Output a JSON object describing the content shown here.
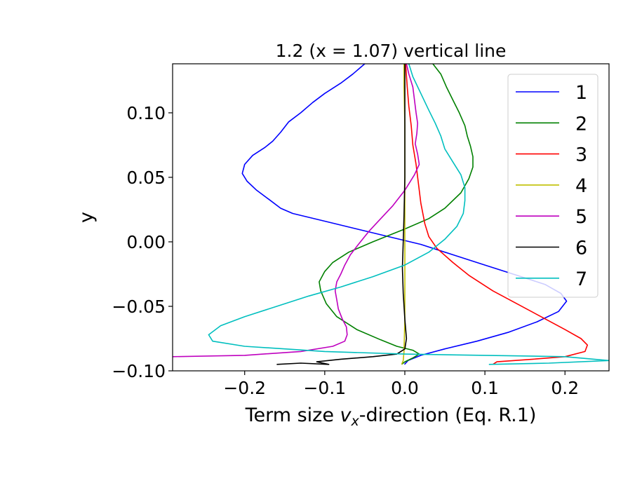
{
  "chart_data": {
    "type": "line",
    "title": "1.2 (x = 1.07) vertical line",
    "xlabel_prefix": "Term size ",
    "xlabel_var": "v",
    "xlabel_sub": "x",
    "xlabel_suffix": "-direction (Eq. R.1)",
    "ylabel": "y",
    "xlim": [
      -0.29,
      0.255
    ],
    "ylim": [
      -0.1,
      0.138
    ],
    "xticks": [
      -0.2,
      -0.1,
      0.0,
      0.1,
      0.2
    ],
    "xtick_labels": [
      "−0.2",
      "−0.1",
      "0.0",
      "0.1",
      "0.2"
    ],
    "yticks": [
      -0.1,
      -0.05,
      0.0,
      0.05,
      0.1
    ],
    "ytick_labels": [
      "−0.10",
      "−0.05",
      "0.00",
      "0.05",
      "0.10"
    ],
    "legend_position": "upper-right",
    "grid": false,
    "series": [
      {
        "name": "1",
        "color": "#0000ff",
        "points": [
          [
            -0.0004,
            -0.095
          ],
          [
            0.004,
            -0.092
          ],
          [
            0.02,
            -0.088
          ],
          [
            0.05,
            -0.083
          ],
          [
            0.09,
            -0.077
          ],
          [
            0.13,
            -0.07
          ],
          [
            0.165,
            -0.062
          ],
          [
            0.192,
            -0.054
          ],
          [
            0.202,
            -0.046
          ],
          [
            0.195,
            -0.04
          ],
          [
            0.175,
            -0.033
          ],
          [
            0.14,
            -0.026
          ],
          [
            0.1,
            -0.018
          ],
          [
            0.06,
            -0.01
          ],
          [
            0.02,
            -0.002
          ],
          [
            -0.02,
            0.004
          ],
          [
            -0.06,
            0.01
          ],
          [
            -0.1,
            0.016
          ],
          [
            -0.14,
            0.022
          ],
          [
            -0.155,
            0.026
          ],
          [
            -0.17,
            0.033
          ],
          [
            -0.185,
            0.04
          ],
          [
            -0.197,
            0.047
          ],
          [
            -0.203,
            0.053
          ],
          [
            -0.2,
            0.06
          ],
          [
            -0.19,
            0.067
          ],
          [
            -0.175,
            0.073
          ],
          [
            -0.165,
            0.078
          ],
          [
            -0.155,
            0.085
          ],
          [
            -0.145,
            0.093
          ],
          [
            -0.13,
            0.1
          ],
          [
            -0.115,
            0.108
          ],
          [
            -0.1,
            0.115
          ],
          [
            -0.08,
            0.123
          ],
          [
            -0.065,
            0.13
          ],
          [
            -0.05,
            0.138
          ]
        ]
      },
      {
        "name": "2",
        "color": "#008000",
        "points": [
          [
            -0.004,
            -0.095
          ],
          [
            0.0,
            -0.093
          ],
          [
            0.01,
            -0.09
          ],
          [
            0.018,
            -0.087
          ],
          [
            0.01,
            -0.084
          ],
          [
            -0.01,
            -0.081
          ],
          [
            -0.03,
            -0.076
          ],
          [
            -0.06,
            -0.068
          ],
          [
            -0.085,
            -0.058
          ],
          [
            -0.098,
            -0.048
          ],
          [
            -0.105,
            -0.038
          ],
          [
            -0.107,
            -0.031
          ],
          [
            -0.1,
            -0.023
          ],
          [
            -0.09,
            -0.016
          ],
          [
            -0.07,
            -0.008
          ],
          [
            -0.04,
            0.0
          ],
          [
            0.0,
            0.01
          ],
          [
            0.03,
            0.018
          ],
          [
            0.05,
            0.026
          ],
          [
            0.07,
            0.038
          ],
          [
            0.08,
            0.049
          ],
          [
            0.085,
            0.058
          ],
          [
            0.085,
            0.066
          ],
          [
            0.082,
            0.074
          ],
          [
            0.078,
            0.082
          ],
          [
            0.075,
            0.09
          ],
          [
            0.068,
            0.1
          ],
          [
            0.06,
            0.11
          ],
          [
            0.052,
            0.12
          ],
          [
            0.045,
            0.13
          ],
          [
            0.035,
            0.138
          ]
        ]
      },
      {
        "name": "3",
        "color": "#ff0000",
        "points": [
          [
            0.11,
            -0.095
          ],
          [
            0.115,
            -0.093
          ],
          [
            0.16,
            -0.091
          ],
          [
            0.2,
            -0.089
          ],
          [
            0.225,
            -0.085
          ],
          [
            0.228,
            -0.08
          ],
          [
            0.22,
            -0.075
          ],
          [
            0.2,
            -0.068
          ],
          [
            0.17,
            -0.058
          ],
          [
            0.14,
            -0.048
          ],
          [
            0.11,
            -0.038
          ],
          [
            0.08,
            -0.026
          ],
          [
            0.06,
            -0.016
          ],
          [
            0.04,
            -0.005
          ],
          [
            0.03,
            0.004
          ],
          [
            0.025,
            0.014
          ],
          [
            0.02,
            0.03
          ],
          [
            0.017,
            0.045
          ],
          [
            0.014,
            0.06
          ],
          [
            0.01,
            0.075
          ],
          [
            0.008,
            0.09
          ],
          [
            0.005,
            0.105
          ],
          [
            0.003,
            0.12
          ],
          [
            0.001,
            0.138
          ]
        ]
      },
      {
        "name": "4",
        "color": "#bfbf00",
        "points": [
          [
            -0.004,
            -0.095
          ],
          [
            -0.002,
            -0.092
          ],
          [
            -0.001,
            -0.085
          ],
          [
            0.0,
            -0.06
          ],
          [
            0.0,
            -0.03
          ],
          [
            0.0,
            0.0
          ],
          [
            0.0,
            0.03
          ],
          [
            0.0,
            0.06
          ],
          [
            0.0,
            0.09
          ],
          [
            -0.001,
            0.12
          ],
          [
            -0.001,
            0.138
          ]
        ]
      },
      {
        "name": "5",
        "color": "#bf00bf",
        "points": [
          [
            -0.29,
            -0.089
          ],
          [
            -0.2,
            -0.088
          ],
          [
            -0.13,
            -0.085
          ],
          [
            -0.09,
            -0.081
          ],
          [
            -0.075,
            -0.077
          ],
          [
            -0.072,
            -0.072
          ],
          [
            -0.073,
            -0.066
          ],
          [
            -0.078,
            -0.06
          ],
          [
            -0.083,
            -0.052
          ],
          [
            -0.085,
            -0.045
          ],
          [
            -0.087,
            -0.038
          ],
          [
            -0.085,
            -0.031
          ],
          [
            -0.08,
            -0.025
          ],
          [
            -0.075,
            -0.018
          ],
          [
            -0.068,
            -0.01
          ],
          [
            -0.058,
            -0.002
          ],
          [
            -0.045,
            0.008
          ],
          [
            -0.03,
            0.018
          ],
          [
            -0.015,
            0.028
          ],
          [
            0.0,
            0.04
          ],
          [
            0.012,
            0.052
          ],
          [
            0.018,
            0.06
          ],
          [
            0.016,
            0.068
          ],
          [
            0.013,
            0.076
          ],
          [
            0.015,
            0.084
          ],
          [
            0.016,
            0.092
          ],
          [
            0.014,
            0.1
          ],
          [
            0.012,
            0.11
          ],
          [
            0.01,
            0.12
          ],
          [
            0.005,
            0.13
          ],
          [
            0.002,
            0.138
          ]
        ]
      },
      {
        "name": "6",
        "color": "#000000",
        "points": [
          [
            -0.16,
            -0.095
          ],
          [
            -0.13,
            -0.094
          ],
          [
            -0.095,
            -0.095
          ],
          [
            -0.11,
            -0.093
          ],
          [
            -0.08,
            -0.091
          ],
          [
            -0.04,
            -0.089
          ],
          [
            -0.01,
            -0.087
          ],
          [
            0.0,
            -0.083
          ],
          [
            0.002,
            -0.075
          ],
          [
            0.0,
            -0.06
          ],
          [
            -0.002,
            -0.04
          ],
          [
            -0.003,
            -0.02
          ],
          [
            -0.002,
            0.0
          ],
          [
            -0.001,
            0.02
          ],
          [
            0.0,
            0.05
          ],
          [
            0.0,
            0.08
          ],
          [
            0.0,
            0.11
          ],
          [
            0.0,
            0.138
          ]
        ]
      },
      {
        "name": "7",
        "color": "#00bfbf",
        "points": [
          [
            0.105,
            -0.095
          ],
          [
            0.18,
            -0.094
          ],
          [
            0.255,
            -0.092
          ],
          [
            0.2,
            -0.089
          ],
          [
            0.1,
            -0.088
          ],
          [
            0.0,
            -0.087
          ],
          [
            -0.1,
            -0.085
          ],
          [
            -0.2,
            -0.081
          ],
          [
            -0.24,
            -0.077
          ],
          [
            -0.245,
            -0.072
          ],
          [
            -0.23,
            -0.065
          ],
          [
            -0.2,
            -0.058
          ],
          [
            -0.16,
            -0.05
          ],
          [
            -0.12,
            -0.042
          ],
          [
            -0.08,
            -0.035
          ],
          [
            -0.04,
            -0.027
          ],
          [
            0.0,
            -0.018
          ],
          [
            0.03,
            -0.008
          ],
          [
            0.05,
            0.002
          ],
          [
            0.065,
            0.012
          ],
          [
            0.073,
            0.022
          ],
          [
            0.075,
            0.032
          ],
          [
            0.075,
            0.042
          ],
          [
            0.07,
            0.052
          ],
          [
            0.06,
            0.062
          ],
          [
            0.05,
            0.072
          ],
          [
            0.045,
            0.082
          ],
          [
            0.038,
            0.092
          ],
          [
            0.03,
            0.102
          ],
          [
            0.02,
            0.115
          ],
          [
            0.01,
            0.128
          ],
          [
            0.005,
            0.138
          ]
        ]
      }
    ]
  }
}
